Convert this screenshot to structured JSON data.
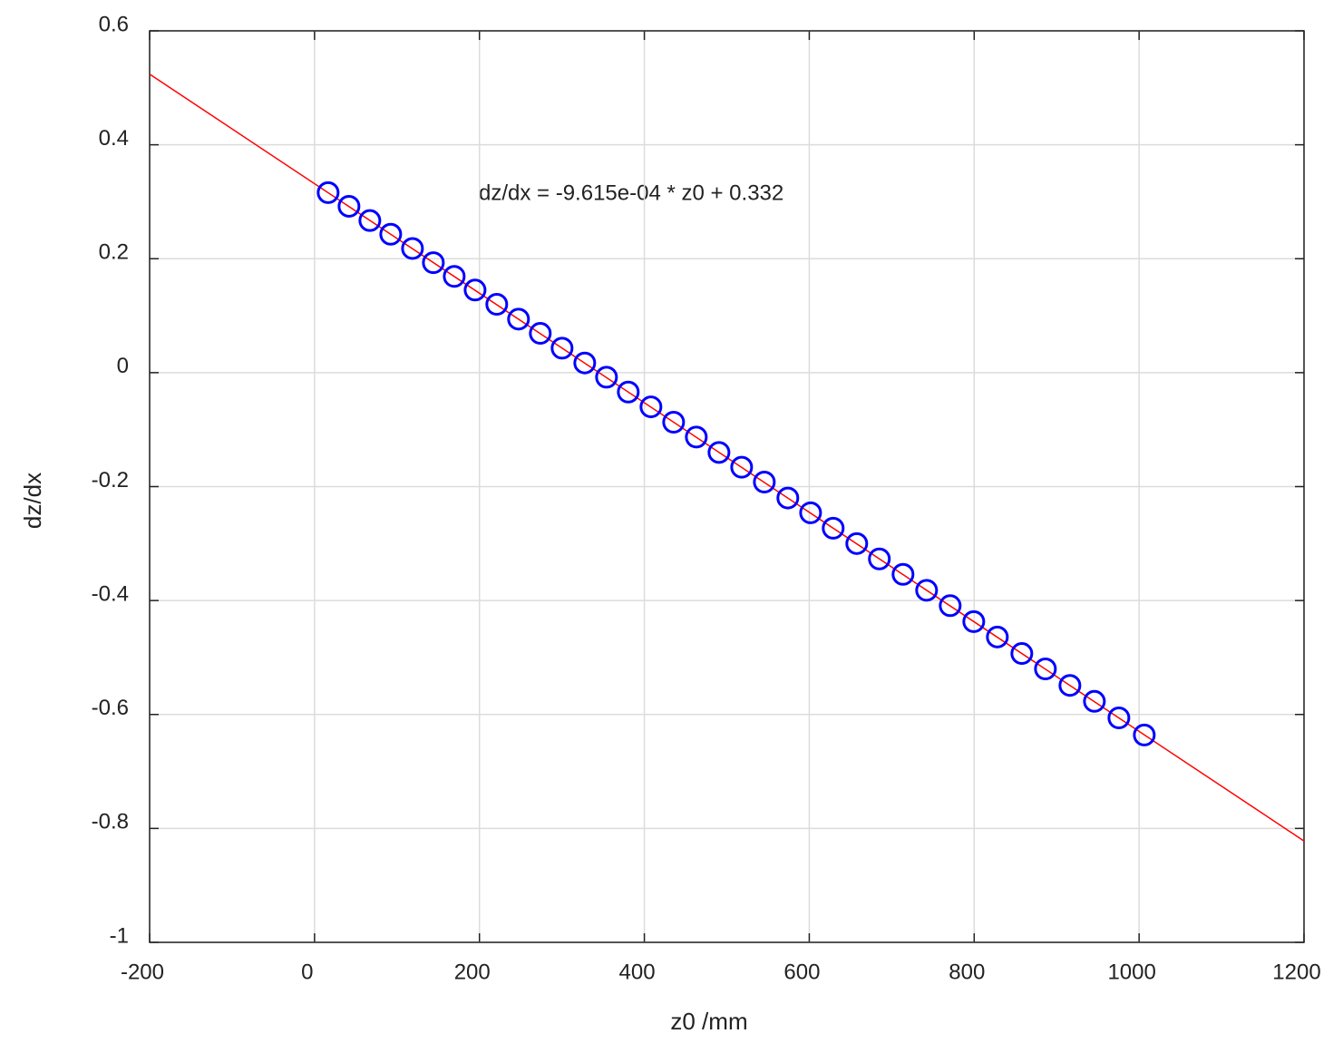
{
  "chart_data": {
    "type": "scatter",
    "annotation": "dz/dx = -9.615e-04 * z0 + 0.332",
    "x_label": "z0 /mm",
    "y_label": "dz/dx",
    "xlim": [
      -200,
      1200
    ],
    "ylim": [
      -1,
      0.6
    ],
    "xticks": [
      -200,
      0,
      200,
      400,
      600,
      800,
      1000,
      1200
    ],
    "yticks": [
      -1,
      -0.8,
      -0.6,
      -0.4,
      -0.2,
      0,
      0.2,
      0.4,
      0.6
    ],
    "grid": true,
    "series": [
      {
        "color": "#0000ff",
        "marker": "circle",
        "x": [
          16.5,
          41.8,
          67.1,
          92.4,
          118.8,
          144.1,
          169.4,
          194.7,
          221,
          247.4,
          273.8,
          300.2,
          327.7,
          354.1,
          380.5,
          408,
          435.5,
          463,
          490.5,
          518,
          545.5,
          574,
          601.6,
          629,
          657.6,
          685,
          713.7,
          742.3,
          770.9,
          799.5,
          828.1,
          857.8,
          886.4,
          916.1,
          945.8,
          975.5,
          1006.3
        ],
        "values": [
          0.316,
          0.292,
          0.267,
          0.243,
          0.218,
          0.193,
          0.169,
          0.145,
          0.12,
          0.094,
          0.069,
          0.043,
          0.017,
          -0.008,
          -0.034,
          -0.06,
          -0.087,
          -0.113,
          -0.14,
          -0.166,
          -0.192,
          -0.22,
          -0.246,
          -0.273,
          -0.3,
          -0.327,
          -0.354,
          -0.382,
          -0.409,
          -0.437,
          -0.464,
          -0.493,
          -0.52,
          -0.549,
          -0.577,
          -0.606,
          -0.636
        ]
      },
      {
        "color": "#ff0000",
        "marker": "none",
        "x": [
          -200,
          1200
        ],
        "values": [
          0.524,
          -0.822
        ]
      }
    ]
  }
}
